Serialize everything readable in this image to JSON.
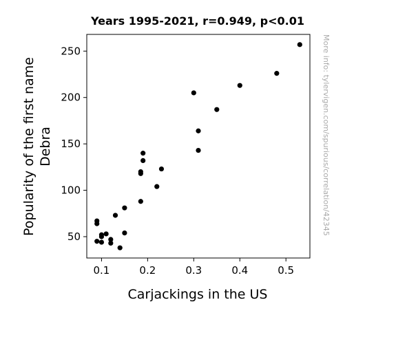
{
  "chart_data": {
    "type": "scatter",
    "title": "Years 1995-2021, r=0.949, p<0.01",
    "xlabel": "Carjackings in the US",
    "ylabel_lines": [
      "Popularity of the first name",
      "Debra"
    ],
    "xlim": [
      0.068,
      0.552
    ],
    "ylim": [
      27,
      268
    ],
    "xticks": [
      0.1,
      0.2,
      0.3,
      0.4,
      0.5
    ],
    "xtick_labels": [
      "0.1",
      "0.2",
      "0.3",
      "0.4",
      "0.5"
    ],
    "yticks": [
      50,
      100,
      150,
      200,
      250
    ],
    "ytick_labels": [
      "50",
      "100",
      "150",
      "200",
      "250"
    ],
    "marker_color": "#000000",
    "points": [
      {
        "x": 0.53,
        "y": 257
      },
      {
        "x": 0.48,
        "y": 226
      },
      {
        "x": 0.4,
        "y": 213
      },
      {
        "x": 0.35,
        "y": 187
      },
      {
        "x": 0.3,
        "y": 205
      },
      {
        "x": 0.31,
        "y": 164
      },
      {
        "x": 0.31,
        "y": 143
      },
      {
        "x": 0.23,
        "y": 123
      },
      {
        "x": 0.22,
        "y": 104
      },
      {
        "x": 0.19,
        "y": 140
      },
      {
        "x": 0.19,
        "y": 132
      },
      {
        "x": 0.185,
        "y": 120
      },
      {
        "x": 0.185,
        "y": 118
      },
      {
        "x": 0.185,
        "y": 88
      },
      {
        "x": 0.15,
        "y": 81
      },
      {
        "x": 0.15,
        "y": 54
      },
      {
        "x": 0.13,
        "y": 73
      },
      {
        "x": 0.14,
        "y": 38
      },
      {
        "x": 0.12,
        "y": 47
      },
      {
        "x": 0.12,
        "y": 43
      },
      {
        "x": 0.11,
        "y": 53
      },
      {
        "x": 0.1,
        "y": 52
      },
      {
        "x": 0.1,
        "y": 50
      },
      {
        "x": 0.1,
        "y": 44
      },
      {
        "x": 0.09,
        "y": 67
      },
      {
        "x": 0.09,
        "y": 64
      },
      {
        "x": 0.09,
        "y": 45
      }
    ]
  },
  "watermark": "More info: tylervigen.com/spurious/correlation/42345"
}
